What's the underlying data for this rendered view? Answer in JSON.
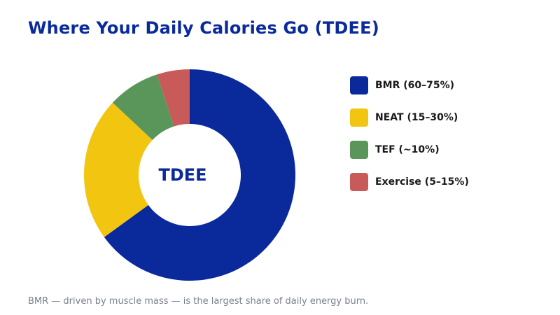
{
  "title": "Where Your Daily Calories Go (TDEE)",
  "footnote": "BMR — driven by muscle mass — is the largest share of daily energy burn.",
  "chart_data": {
    "type": "pie",
    "variant": "donut",
    "center_label": "TDEE",
    "unit": "percent",
    "legend_position": "right",
    "slices": [
      {
        "name": "BMR (60–75%)",
        "value": 65,
        "color": "#0a2a9c"
      },
      {
        "name": "NEAT (15–30%)",
        "value": 22,
        "color": "#f2c511"
      },
      {
        "name": "TEF (~10%)",
        "value": 8,
        "color": "#5a965a"
      },
      {
        "name": "Exercise (5–15%)",
        "value": 5,
        "color": "#c85a5a"
      }
    ]
  }
}
